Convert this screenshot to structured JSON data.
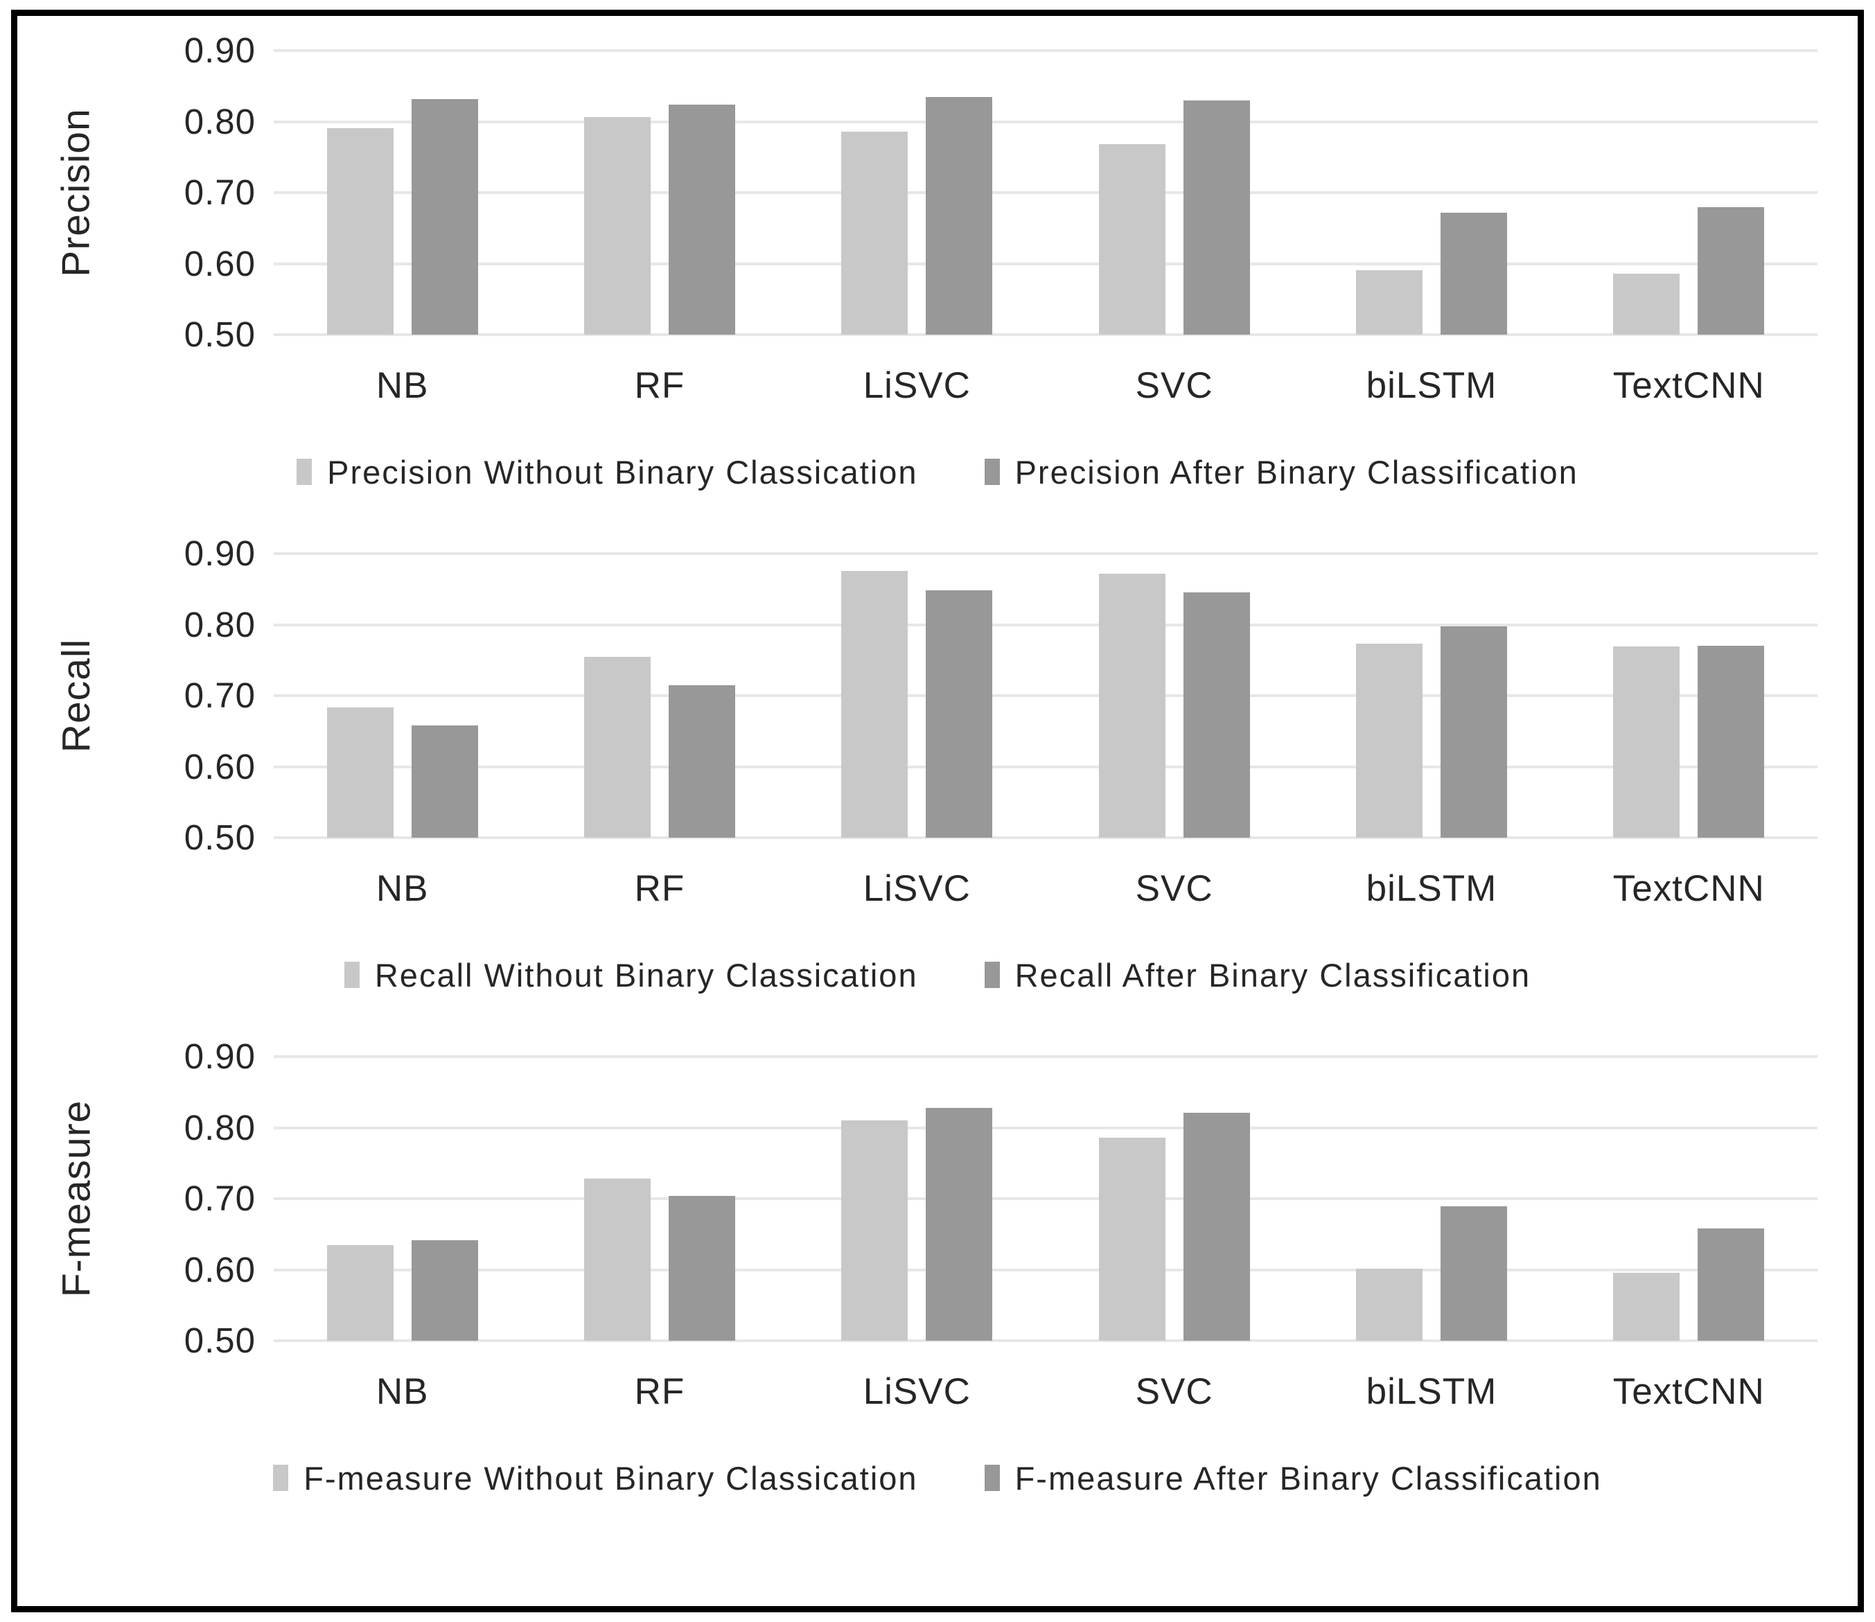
{
  "figure": {
    "description": "Three stacked grouped bar charts comparing classifiers before/after binary classification",
    "border_color": "#000000",
    "background": "#ffffff",
    "text_color": "#262626",
    "gridline_color": "#e7e7e7"
  },
  "chart_data": [
    {
      "type": "bar",
      "title": "",
      "ylabel": "Precision",
      "xlabel": "",
      "ylim": [
        0.5,
        0.9
      ],
      "ytick_labels": [
        "0.90",
        "0.80",
        "0.70",
        "0.60",
        "0.50"
      ],
      "grid": true,
      "legend_position": "bottom",
      "categories": [
        "NB",
        "RF",
        "LiSVC",
        "SVC",
        "biLSTM",
        "TextCNN"
      ],
      "series": [
        {
          "name": "Precision Without Binary Classication",
          "color": "#c8c8c8",
          "values": [
            0.791,
            0.806,
            0.786,
            0.768,
            0.591,
            0.586
          ]
        },
        {
          "name": "Precision After Binary Classification",
          "color": "#989898",
          "values": [
            0.832,
            0.824,
            0.835,
            0.83,
            0.672,
            0.68
          ]
        }
      ]
    },
    {
      "type": "bar",
      "title": "",
      "ylabel": "Recall",
      "xlabel": "",
      "ylim": [
        0.5,
        0.9
      ],
      "ytick_labels": [
        "0.90",
        "0.80",
        "0.70",
        "0.60",
        "0.50"
      ],
      "grid": true,
      "legend_position": "bottom",
      "categories": [
        "NB",
        "RF",
        "LiSVC",
        "SVC",
        "biLSTM",
        "TextCNN"
      ],
      "series": [
        {
          "name": "Recall Without Binary Classication",
          "color": "#c8c8c8",
          "values": [
            0.683,
            0.755,
            0.876,
            0.872,
            0.773,
            0.769
          ]
        },
        {
          "name": "Recall After Binary Classification",
          "color": "#989898",
          "values": [
            0.658,
            0.715,
            0.848,
            0.845,
            0.798,
            0.77
          ]
        }
      ]
    },
    {
      "type": "bar",
      "title": "",
      "ylabel": "F-measure",
      "xlabel": "",
      "ylim": [
        0.5,
        0.9
      ],
      "ytick_labels": [
        "0.90",
        "0.80",
        "0.70",
        "0.60",
        "0.50"
      ],
      "grid": true,
      "legend_position": "bottom",
      "categories": [
        "NB",
        "RF",
        "LiSVC",
        "SVC",
        "biLSTM",
        "TextCNN"
      ],
      "series": [
        {
          "name": "F-measure Without Binary Classication",
          "color": "#c8c8c8",
          "values": [
            0.635,
            0.728,
            0.81,
            0.786,
            0.601,
            0.596
          ]
        },
        {
          "name": "F-measure After Binary Classification",
          "color": "#989898",
          "values": [
            0.641,
            0.704,
            0.828,
            0.821,
            0.689,
            0.658
          ]
        }
      ]
    }
  ]
}
